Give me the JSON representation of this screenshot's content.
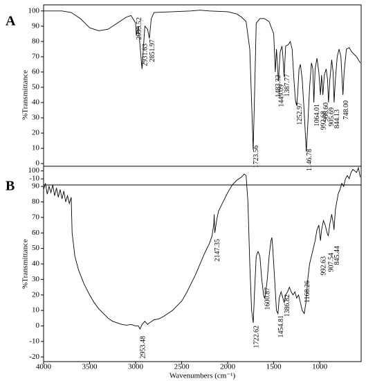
{
  "chart_data": [
    {
      "type": "line",
      "panel": "A",
      "ylabel": "%Transmittance",
      "xlim": [
        4000,
        550
      ],
      "ylim": [
        -14,
        104
      ],
      "yticks": [
        -10,
        0,
        10,
        20,
        30,
        40,
        50,
        60,
        70,
        80,
        90,
        100
      ],
      "series": [
        {
          "color": "#000000",
          "x": [
            4000,
            3800,
            3700,
            3600,
            3500,
            3400,
            3300,
            3200,
            3100,
            3050,
            3000,
            2993,
            2970,
            2931,
            2900,
            2870,
            2851,
            2830,
            2800,
            2600,
            2400,
            2300,
            2200,
            2000,
            1900,
            1850,
            1800,
            1760,
            1740,
            1723,
            1710,
            1690,
            1650,
            1600,
            1550,
            1500,
            1483,
            1470,
            1449,
            1430,
            1410,
            1400,
            1387,
            1370,
            1340,
            1320,
            1300,
            1280,
            1265,
            1252,
            1240,
            1225,
            1210,
            1190,
            1170,
            1146,
            1130,
            1110,
            1090,
            1075,
            1064,
            1050,
            1030,
            1010,
            992,
            980,
            966,
            950,
            930,
            915,
            905,
            890,
            870,
            855,
            844,
            830,
            810,
            790,
            770,
            748,
            735,
            710,
            680,
            650,
            600,
            560
          ],
          "values": [
            100,
            100,
            99,
            95,
            89,
            87,
            88,
            92,
            96,
            97,
            92,
            84,
            90,
            62,
            90,
            88,
            82,
            95,
            99,
            99.5,
            100,
            100.5,
            100,
            99.5,
            98,
            96,
            93,
            75,
            40,
            9,
            40,
            92,
            95,
            95,
            93,
            85,
            60,
            75,
            54,
            73,
            77,
            70,
            57,
            77,
            78,
            80,
            75,
            55,
            42,
            38,
            45,
            62,
            65,
            55,
            35,
            8,
            25,
            50,
            66,
            62,
            40,
            62,
            69,
            60,
            45,
            58,
            45,
            58,
            62,
            55,
            40,
            55,
            68,
            60,
            40,
            55,
            70,
            75,
            70,
            45,
            60,
            75,
            76,
            73,
            70,
            66
          ]
        }
      ],
      "annotations": [
        {
          "text": "2993.52",
          "x": 2993.52
        },
        {
          "text": "2931.63",
          "x": 2931.63
        },
        {
          "text": "2851.97",
          "x": 2851.97
        },
        {
          "text": "1723.56",
          "x": 1723.56
        },
        {
          "text": "1483.32",
          "x": 1483.32
        },
        {
          "text": "1449.09",
          "x": 1449.09
        },
        {
          "text": "1387.77",
          "x": 1387.77
        },
        {
          "text": "1252.97",
          "x": 1252.97
        },
        {
          "text": "1146.78",
          "x": 1146.78
        },
        {
          "text": "1064.01",
          "x": 1064.01
        },
        {
          "text": "992.68",
          "x": 992.68
        },
        {
          "text": "966.60",
          "x": 966.6
        },
        {
          "text": "905.69",
          "x": 905.69
        },
        {
          "text": "844.13",
          "x": 844.13
        },
        {
          "text": "748.00",
          "x": 748.0
        }
      ]
    },
    {
      "type": "line",
      "panel": "B",
      "ylabel": "%Transmittance",
      "xlabel": "Wavenumbers (cm⁻¹)",
      "xlim": [
        4000,
        550
      ],
      "ylim": [
        -23,
        103
      ],
      "xticks": [
        4000,
        3500,
        3000,
        2500,
        2000,
        1500,
        1000
      ],
      "yticks": [
        -20,
        -10,
        0,
        10,
        20,
        30,
        40,
        50,
        60,
        70,
        80,
        90,
        100
      ],
      "series": [
        {
          "color": "#000000",
          "x": [
            4000,
            3980,
            3960,
            3940,
            3920,
            3900,
            3880,
            3860,
            3840,
            3820,
            3800,
            3780,
            3760,
            3740,
            3720,
            3700,
            3690,
            3660,
            3620,
            3600,
            3560,
            3500,
            3450,
            3400,
            3350,
            3300,
            3250,
            3200,
            3150,
            3100,
            3050,
            3000,
            2970,
            2953,
            2930,
            2900,
            2870,
            2850,
            2800,
            2750,
            2700,
            2650,
            2600,
            2550,
            2500,
            2450,
            2400,
            2350,
            2300,
            2250,
            2200,
            2170,
            2150,
            2147,
            2140,
            2120,
            2100,
            2050,
            2000,
            1950,
            1900,
            1850,
            1820,
            1800,
            1780,
            1760,
            1740,
            1722,
            1710,
            1690,
            1670,
            1650,
            1630,
            1610,
            1600,
            1590,
            1570,
            1550,
            1530,
            1520,
            1510,
            1490,
            1470,
            1454,
            1440,
            1420,
            1400,
            1386,
            1370,
            1350,
            1330,
            1310,
            1290,
            1270,
            1250,
            1230,
            1210,
            1190,
            1168,
            1150,
            1130,
            1110,
            1090,
            1070,
            1050,
            1030,
            1010,
            992,
            980,
            960,
            940,
            920,
            907,
            890,
            870,
            850,
            845,
            830,
            800,
            780,
            760,
            740,
            720,
            700,
            680,
            660,
            640,
            620,
            600,
            580,
            560
          ],
          "values": [
            88,
            92,
            85,
            90,
            86,
            91,
            84,
            89,
            83,
            88,
            82,
            87,
            80,
            84,
            79,
            83,
            60,
            45,
            36,
            33,
            27,
            20,
            15,
            11,
            8,
            5,
            3,
            2,
            1,
            0.5,
            1,
            0,
            0,
            -2,
            1,
            3,
            1,
            2,
            4,
            4.5,
            6,
            8,
            10,
            13,
            16,
            21,
            27,
            33,
            40,
            47,
            53,
            58,
            66,
            72,
            60,
            68,
            74,
            80,
            86,
            91,
            94,
            96,
            98,
            97,
            80,
            40,
            10,
            2,
            20,
            45,
            48,
            45,
            30,
            20,
            18,
            20,
            30,
            45,
            55,
            57,
            50,
            30,
            10,
            8,
            18,
            22,
            18,
            15,
            20,
            22,
            25,
            22,
            20,
            22,
            18,
            20,
            15,
            10,
            8,
            15,
            30,
            40,
            45,
            50,
            55,
            62,
            65,
            55,
            62,
            68,
            65,
            60,
            58,
            66,
            72,
            65,
            62,
            75,
            85,
            88,
            92,
            90,
            95,
            97,
            95,
            99,
            101,
            100,
            99,
            102,
            96
          ]
        }
      ],
      "annotations": [
        {
          "text": "2953.48",
          "x": 2953.48
        },
        {
          "text": "2147.35",
          "x": 2147.35
        },
        {
          "text": "1722.62",
          "x": 1722.62
        },
        {
          "text": "1600.87",
          "x": 1600.87
        },
        {
          "text": "1454.81",
          "x": 1454.81
        },
        {
          "text": "1386.82",
          "x": 1386.82
        },
        {
          "text": "1168.26",
          "x": 1168.26
        },
        {
          "text": "992.63",
          "x": 992.63
        },
        {
          "text": "907.54",
          "x": 907.54
        },
        {
          "text": "845.44",
          "x": 845.44
        }
      ]
    }
  ]
}
